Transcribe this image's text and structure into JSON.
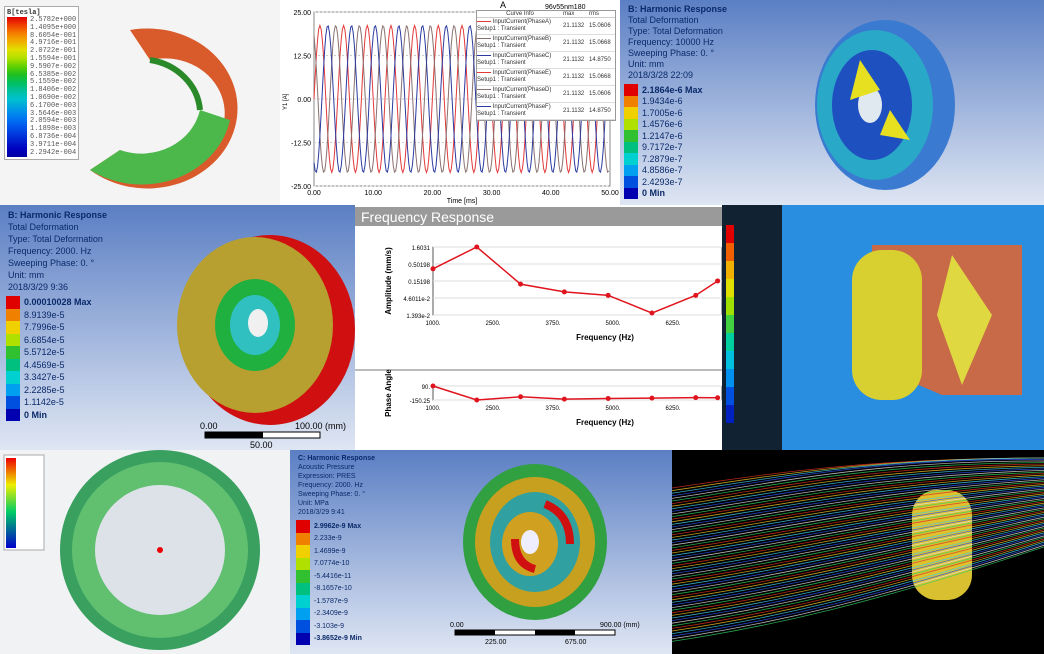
{
  "panel_magnetic": {
    "legend_title": "B[tesla]",
    "legend_values": [
      "2.5782e+000",
      "1.4095e+000",
      "8.6054e-001",
      "4.9716e-001",
      "2.0722e-001",
      "1.5594e-001",
      "9.5907e-002",
      "6.5385e-002",
      "5.1559e-002",
      "1.8406e-002",
      "1.0690e-002",
      "6.1700e-003",
      "3.5646e-003",
      "2.0594e-003",
      "1.1898e-003",
      "6.8736e-004",
      "3.9711e-004",
      "2.2942e-004"
    ],
    "legend_colors": [
      "#e00000",
      "#f04000",
      "#f58000",
      "#f0b000",
      "#e0e000",
      "#b0e000",
      "#60d000",
      "#20c020",
      "#00c060",
      "#00c0a0",
      "#00c0d0",
      "#00a0e0",
      "#0080f0",
      "#0060f0",
      "#0040e0",
      "#0020d0",
      "#0000c0",
      "#0000a0"
    ]
  },
  "panel_current": {
    "title": "A",
    "project": "96v55nm180",
    "legend_header": [
      "Curve Info",
      "max",
      "rms"
    ],
    "curves": [
      {
        "name": "InputCurrent(PhaseA)",
        "setup": "Setup1 : Transient",
        "max": "21.1132",
        "rms": "15.0606",
        "color": "#e23a3a"
      },
      {
        "name": "InputCurrent(PhaseB)",
        "setup": "Setup1 : Transient",
        "max": "21.1132",
        "rms": "15.0668",
        "color": "#8a7070"
      },
      {
        "name": "InputCurrent(PhaseC)",
        "setup": "Setup1 : Transient",
        "max": "21.1132",
        "rms": "14.8750",
        "color": "#2a3aa0"
      },
      {
        "name": "InputCurrent(PhaseE)",
        "setup": "Setup1 : Transient",
        "max": "21.1132",
        "rms": "15.0668",
        "color": "#e23a3a"
      },
      {
        "name": "InputCurrent(PhaseD)",
        "setup": "Setup1 : Transient",
        "max": "21.1132",
        "rms": "15.0606",
        "color": "#8a7070"
      },
      {
        "name": "InputCurrent(PhaseF)",
        "setup": "Setup1 : Transient",
        "max": "21.1132",
        "rms": "14.8750",
        "color": "#2a3aa0"
      }
    ]
  },
  "chart_data": [
    {
      "type": "line",
      "title": "A",
      "xlabel": "Time [ms]",
      "ylabel": "Y1 [A]",
      "xlim": [
        0,
        50
      ],
      "ylim": [
        -25,
        25
      ],
      "x_ticks": [
        "0.00",
        "10.00",
        "20.00",
        "30.00",
        "40.00",
        "50.00"
      ],
      "y_ticks": [
        "25.00",
        "12.50",
        "0.00",
        "-12.50",
        "-25.00"
      ],
      "amplitude": 21.1132,
      "period_ms": 4,
      "phase_offsets_deg": [
        0,
        120,
        240,
        0,
        120,
        240
      ],
      "grid": true
    },
    {
      "type": "line",
      "title": "Frequency Response",
      "xlabel": "Frequency (Hz)",
      "ylabel": "Amplitude (mm/s)",
      "scale": "log",
      "x_ticks": [
        "1000.",
        "2500.",
        "3750.",
        "5000.",
        "6250.",
        "7500"
      ],
      "y_ticks": [
        "1.6031",
        "0.50198",
        "0.15198",
        "4.6011e-2",
        "1.393e-2"
      ],
      "x": [
        1000,
        2000,
        3000,
        4000,
        5000,
        6000,
        7000,
        7500
      ],
      "values": [
        0.35,
        1.6031,
        0.12,
        0.07,
        0.055,
        0.016,
        0.055,
        0.15
      ],
      "color": "#e0141e"
    },
    {
      "type": "line",
      "xlabel": "Frequency (Hz)",
      "ylabel": "Phase Angle",
      "x_ticks": [
        "1000.",
        "2500.",
        "3750.",
        "5000.",
        "6250.",
        "7500"
      ],
      "y_ticks": [
        "90.",
        "-150.25"
      ],
      "x": [
        1000,
        2000,
        3000,
        4000,
        5000,
        6000,
        7000,
        7500
      ],
      "values": [
        90,
        -150.25,
        -95,
        -135,
        -125,
        -118,
        -110,
        -112
      ],
      "color": "#e0141e"
    }
  ],
  "panel_harmonic1": {
    "lines": [
      "B: Harmonic Response",
      "Total Deformation",
      "Type: Total Deformation",
      "Frequency: 10000 Hz",
      "Sweeping Phase: 0. °",
      "Unit: mm",
      "2018/3/28 22:09"
    ],
    "legend": [
      "2.1864e-6 Max",
      "1.9434e-6",
      "1.7005e-6",
      "1.4576e-6",
      "1.2147e-6",
      "9.7172e-7",
      "7.2879e-7",
      "4.8586e-7",
      "2.4293e-7",
      "0 Min"
    ]
  },
  "panel_harmonic2": {
    "lines": [
      "B: Harmonic Response",
      "Total Deformation",
      "Type: Total Deformation",
      "Frequency: 2000. Hz",
      "Sweeping Phase: 0. °",
      "Unit: mm",
      "2018/3/29 9:36"
    ],
    "legend": [
      "0.00010028 Max",
      "8.9139e-5",
      "7.7996e-5",
      "6.6854e-5",
      "5.5712e-5",
      "4.4569e-5",
      "3.3427e-5",
      "2.2285e-5",
      "1.1142e-5",
      "0 Min"
    ],
    "scale": [
      "0.00",
      "100.00 (mm)",
      "50.00"
    ]
  },
  "panel_harmonic3": {
    "lines": [
      "C: Harmonic Response",
      "Acoustic Pressure",
      "Expression: PRES",
      "Frequency: 2000. Hz",
      "Sweeping Phase: 0. °",
      "Unit: MPa",
      "2018/3/29 9:41"
    ],
    "legend": [
      "2.9962e-9 Max",
      "2.233e-9",
      "1.4699e-9",
      "7.0774e-10",
      "-5.4416e-11",
      "-8.1657e-10",
      "-1.5787e-9",
      "-2.3409e-9",
      "-3.103e-9",
      "-3.8652e-9 Min"
    ],
    "scale": [
      "0.00",
      "900.00 (mm)",
      "225.00",
      "675.00"
    ]
  },
  "freq_panel_title": "Frequency Response",
  "legend_colors10": [
    "#e00000",
    "#f08000",
    "#f0d000",
    "#b0e000",
    "#30c030",
    "#00c080",
    "#00d0d0",
    "#00a0f0",
    "#0050e0",
    "#0000b0"
  ]
}
